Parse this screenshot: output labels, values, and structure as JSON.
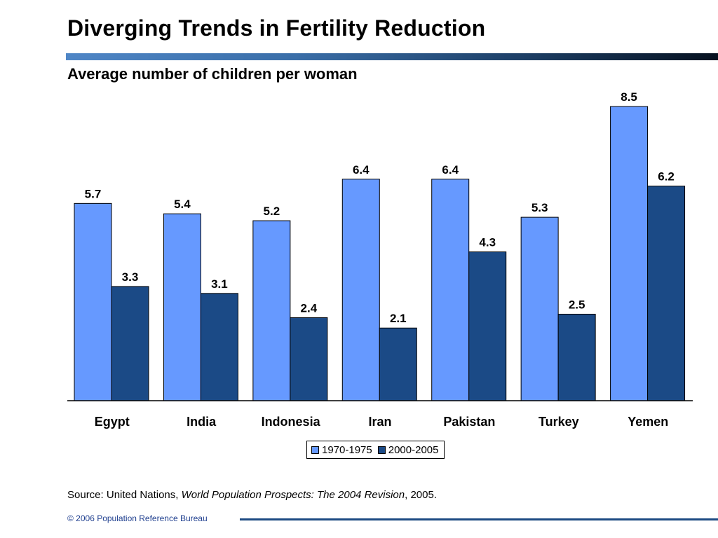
{
  "title": "Diverging Trends in Fertility Reduction",
  "chart_data": {
    "type": "bar",
    "title": "Diverging Trends in Fertility Reduction",
    "subtitle": "Average number of children per woman",
    "categories": [
      "Egypt",
      "India",
      "Indonesia",
      "Iran",
      "Pakistan",
      "Turkey",
      "Yemen"
    ],
    "series": [
      {
        "name": "1970-1975",
        "values": [
          5.7,
          5.4,
          5.2,
          6.4,
          6.4,
          5.3,
          8.5
        ],
        "color": "#6699ff"
      },
      {
        "name": "2000-2005",
        "values": [
          3.3,
          3.1,
          2.4,
          2.1,
          4.3,
          2.5,
          6.2
        ],
        "color": "#1b4a86"
      }
    ],
    "ylim": [
      0,
      8.5
    ],
    "grid": false,
    "legend_position": "bottom-center",
    "data_labels": true
  },
  "source": {
    "prefix": "Source: United Nations, ",
    "italic": "World Population Prospects: The 2004 Revision",
    "suffix": ", 2005."
  },
  "footer": "© 2006 Population Reference Bureau"
}
